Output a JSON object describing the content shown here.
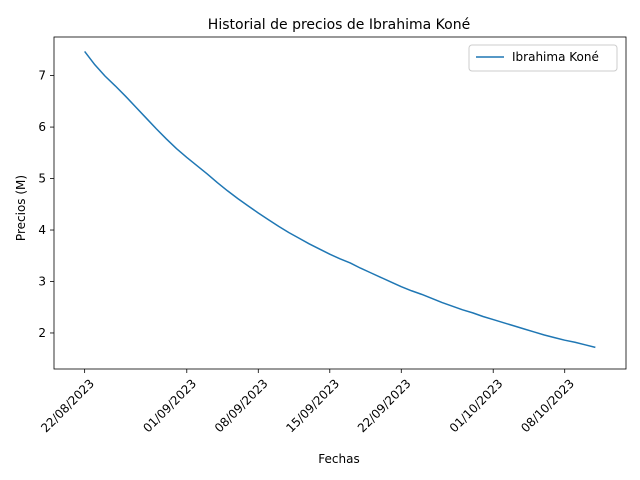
{
  "chart_data": {
    "type": "line",
    "title": "Historial de precios de Ibrahima Koné",
    "xlabel": "Fechas",
    "ylabel": "Precios (M)",
    "x_tick_labels": [
      "22/08/2023",
      "01/09/2023",
      "08/09/2023",
      "15/09/2023",
      "22/09/2023",
      "01/10/2023",
      "08/10/2023"
    ],
    "y_tick_labels": [
      "2",
      "3",
      "4",
      "5",
      "6",
      "7"
    ],
    "ylim": [
      1.3,
      7.75
    ],
    "xlim": [
      "2023-08-19",
      "2023-10-14"
    ],
    "grid": false,
    "legend_position": "top-right",
    "series": [
      {
        "name": "Ibrahima Koné",
        "color": "#1f77b4",
        "x": [
          "2023-08-22",
          "2023-08-23",
          "2023-08-24",
          "2023-08-25",
          "2023-08-26",
          "2023-08-27",
          "2023-08-28",
          "2023-08-29",
          "2023-08-30",
          "2023-08-31",
          "2023-09-01",
          "2023-09-02",
          "2023-09-03",
          "2023-09-04",
          "2023-09-05",
          "2023-09-06",
          "2023-09-07",
          "2023-09-08",
          "2023-09-09",
          "2023-09-10",
          "2023-09-11",
          "2023-09-12",
          "2023-09-13",
          "2023-09-14",
          "2023-09-15",
          "2023-09-16",
          "2023-09-17",
          "2023-09-18",
          "2023-09-19",
          "2023-09-20",
          "2023-09-21",
          "2023-09-22",
          "2023-09-23",
          "2023-09-24",
          "2023-09-25",
          "2023-09-26",
          "2023-09-27",
          "2023-09-28",
          "2023-09-29",
          "2023-09-30",
          "2023-10-01",
          "2023-10-02",
          "2023-10-03",
          "2023-10-04",
          "2023-10-05",
          "2023-10-06",
          "2023-10-07",
          "2023-10-08",
          "2023-10-09",
          "2023-10-10",
          "2023-10-11"
        ],
        "values": [
          7.47,
          7.21,
          6.99,
          6.8,
          6.6,
          6.39,
          6.18,
          5.97,
          5.77,
          5.58,
          5.41,
          5.25,
          5.09,
          4.92,
          4.76,
          4.61,
          4.47,
          4.33,
          4.2,
          4.07,
          3.95,
          3.84,
          3.73,
          3.63,
          3.53,
          3.44,
          3.36,
          3.26,
          3.17,
          3.08,
          2.99,
          2.9,
          2.82,
          2.75,
          2.67,
          2.59,
          2.52,
          2.45,
          2.39,
          2.32,
          2.26,
          2.2,
          2.14,
          2.08,
          2.02,
          1.96,
          1.91,
          1.86,
          1.82,
          1.77,
          1.72
        ]
      }
    ]
  }
}
